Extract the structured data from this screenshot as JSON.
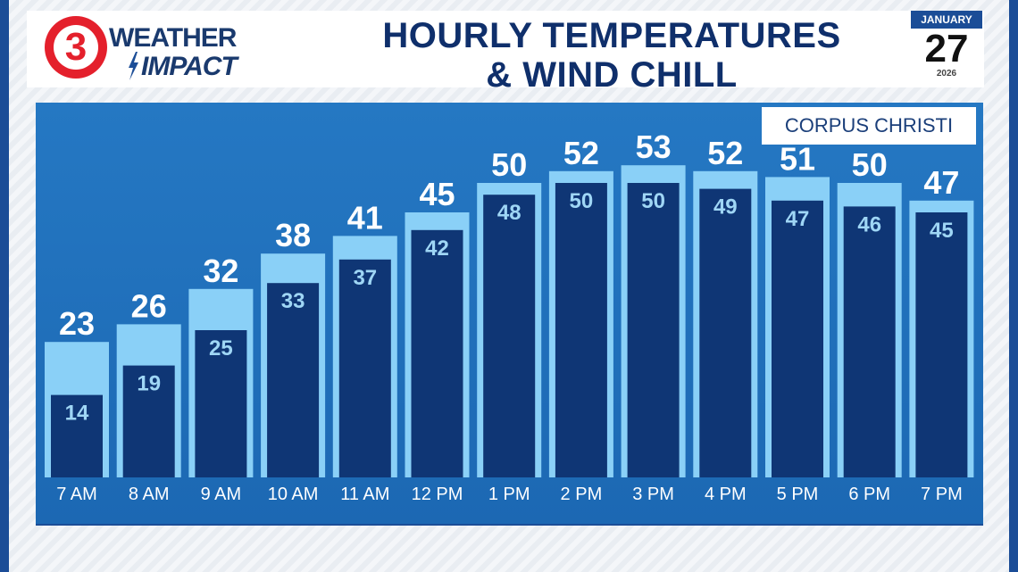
{
  "branding": {
    "logo_numeral": "3",
    "logo_line1": "WEATHER",
    "logo_line2": "IMPACT"
  },
  "header": {
    "title_line1": "HOURLY TEMPERATURES",
    "title_line2": "& WIND CHILL"
  },
  "date": {
    "month": "JANUARY",
    "day": "27",
    "year": "2026"
  },
  "location": "CORPUS CHRISTI",
  "colors": {
    "temperature_bar": "#8ad0f7",
    "wind_chill_bar": "#0f3675",
    "temperature_text": "#ffffff",
    "wind_chill_text": "#9fd6f5",
    "panel": "#2578c3",
    "title": "#0f2f6b",
    "logo_red": "#e4202c"
  },
  "chart_data": {
    "type": "bar",
    "title": "HOURLY TEMPERATURES & WIND CHILL",
    "categories": [
      "7 AM",
      "8 AM",
      "9 AM",
      "10 AM",
      "11 AM",
      "12 PM",
      "1 PM",
      "2 PM",
      "3 PM",
      "4 PM",
      "5 PM",
      "6 PM",
      "7 PM"
    ],
    "series": [
      {
        "values": [
          23,
          26,
          32,
          38,
          41,
          45,
          50,
          52,
          53,
          52,
          51,
          50,
          47
        ]
      },
      {
        "values": [
          14,
          19,
          25,
          33,
          37,
          42,
          48,
          50,
          50,
          49,
          47,
          46,
          45
        ]
      }
    ],
    "ylim": [
      0,
      60
    ],
    "grid": false,
    "legend": "none"
  }
}
